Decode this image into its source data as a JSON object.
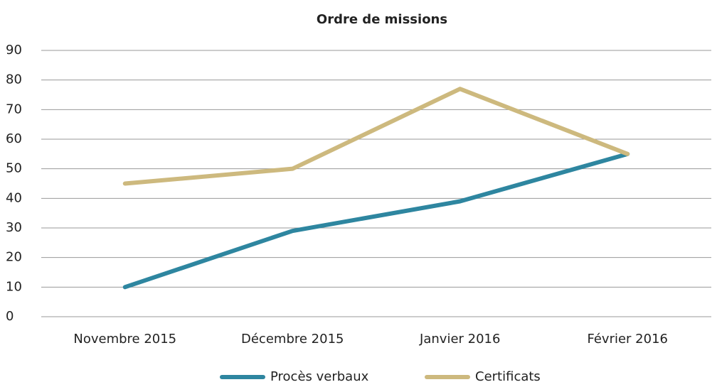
{
  "chart_data": {
    "type": "line",
    "title": "Ordre de missions",
    "categories": [
      "Novembre 2015",
      "Décembre 2015",
      "Janvier 2016",
      "Février 2016"
    ],
    "series": [
      {
        "name": "Procès verbaux",
        "color": "#2e86a0",
        "values": [
          10,
          29,
          39,
          55
        ]
      },
      {
        "name": "Certificats",
        "color": "#cdb97e",
        "values": [
          45,
          50,
          77,
          55
        ]
      }
    ],
    "ylim": [
      0,
      90
    ],
    "yticks": [
      0,
      10,
      20,
      30,
      40,
      50,
      60,
      70,
      80,
      90
    ],
    "grid": true,
    "legend": "bottom"
  }
}
